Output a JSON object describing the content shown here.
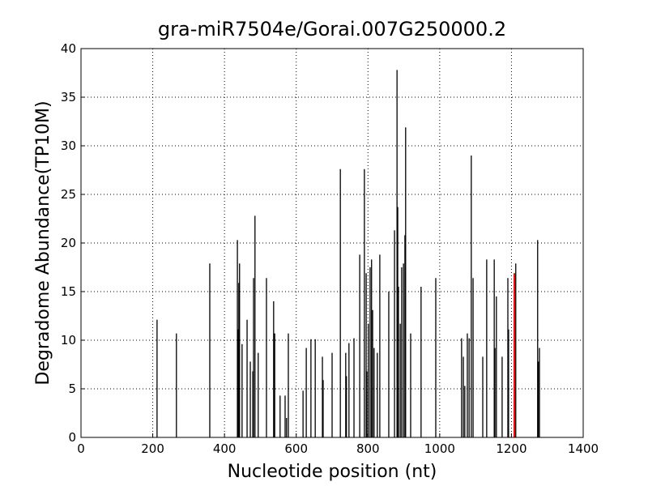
{
  "chart_data": {
    "type": "stem",
    "title": "gra-miR7504e/Gorai.007G250000.2",
    "xlabel": "Nucleotide position (nt)",
    "ylabel": "Degradome Abundance(TP10M)",
    "xlim": [
      0,
      1400
    ],
    "ylim": [
      0,
      40
    ],
    "xticks": [
      0,
      200,
      400,
      600,
      800,
      1000,
      1200,
      1400
    ],
    "yticks": [
      0,
      5,
      10,
      15,
      20,
      25,
      30,
      35,
      40
    ],
    "grid": true,
    "series": [
      {
        "color": "#000000",
        "x": [
          212,
          266,
          359,
          436,
          438,
          440,
          442,
          449,
          463,
          472,
          479,
          481,
          485,
          494,
          517,
          537,
          540,
          555,
          569,
          573,
          578,
          619,
          628,
          641,
          653,
          673,
          675,
          700,
          723,
          738,
          740,
          747,
          761,
          777,
          790,
          795,
          797,
          801,
          806,
          810,
          813,
          817,
          826,
          833,
          858,
          874,
          881,
          883,
          885,
          890,
          894,
          899,
          903,
          905,
          919,
          948,
          989,
          1061,
          1066,
          1070,
          1077,
          1082,
          1088,
          1093,
          1120,
          1131,
          1152,
          1154,
          1158,
          1174,
          1190,
          1192,
          1212,
          1273,
          1275,
          1278
        ],
        "values": [
          12.1,
          10.7,
          17.9,
          20.3,
          11.1,
          15.9,
          17.9,
          9.6,
          12.1,
          7.8,
          6.8,
          16.4,
          22.8,
          8.7,
          16.4,
          14,
          10.7,
          4.3,
          4.3,
          2,
          10.7,
          4.8,
          9.2,
          10.1,
          10.1,
          8.3,
          5.9,
          8.7,
          27.6,
          8.7,
          6.3,
          9.7,
          10.2,
          18.8,
          27.6,
          16.9,
          6.8,
          11.7,
          17.5,
          18.3,
          13.1,
          9.2,
          8.7,
          18.8,
          15,
          21.3,
          37.8,
          23.7,
          15.5,
          11.7,
          17.5,
          17.9,
          20.8,
          31.9,
          10.7,
          15.5,
          16.4,
          10.2,
          8.3,
          5.3,
          10.7,
          10.2,
          29,
          16.4,
          8.3,
          18.3,
          18.3,
          9.2,
          14.5,
          8.3,
          16.4,
          11.1,
          17.9,
          20.3,
          7.8,
          9.2
        ]
      },
      {
        "color": "#ff0000",
        "x": [
          1208
        ],
        "values": [
          16.9
        ]
      }
    ]
  }
}
